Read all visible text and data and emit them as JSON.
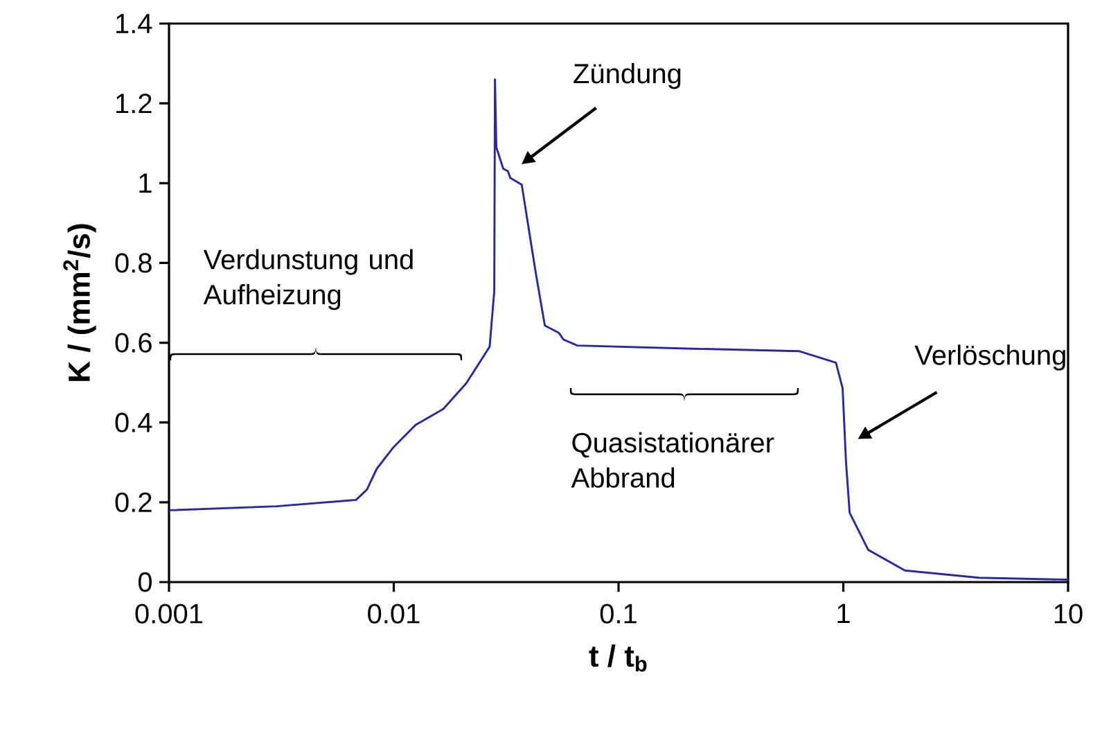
{
  "chart_data": {
    "type": "line",
    "xlabel": "t / t$_{b}$",
    "ylabel": "K / (mm$^{2}$/s)",
    "log": "x",
    "xlim": [
      0.001,
      10
    ],
    "xticks": [
      0.001,
      0.01,
      0.1,
      1,
      10
    ],
    "ylim": [
      0,
      1.4
    ],
    "yticks": [
      0,
      0.2,
      0.4,
      0.6,
      0.8,
      1,
      1.2,
      1.4
    ],
    "grid": false,
    "marker": "none",
    "line_style": "solid",
    "annotations": [
      "Verdunstung und Aufheizung",
      "Quasistationärer Abbrand",
      "Zündung",
      "Verlöschung"
    ],
    "series": [
      {
        "color": "#2a2a9a",
        "x": [
          0.001,
          0.003,
          0.0068,
          0.0076,
          0.0084,
          0.0099,
          0.0125,
          0.0166,
          0.021,
          0.0267,
          0.028,
          0.0282,
          0.0286,
          0.0307,
          0.0322,
          0.033,
          0.0371,
          0.0428,
          0.047,
          0.0542,
          0.0569,
          0.0655,
          0.214,
          0.634,
          0.927,
          0.993,
          1.028,
          1.067,
          1.29,
          1.88,
          4.02,
          10
        ],
        "values": [
          0.18,
          0.19,
          0.206,
          0.232,
          0.284,
          0.336,
          0.394,
          0.434,
          0.498,
          0.59,
          0.73,
          1.26,
          1.09,
          1.036,
          1.03,
          1.013,
          0.996,
          0.776,
          0.643,
          0.625,
          0.608,
          0.593,
          0.585,
          0.579,
          0.55,
          0.486,
          0.301,
          0.174,
          0.081,
          0.029,
          0.011,
          0.006
        ]
      }
    ]
  }
}
